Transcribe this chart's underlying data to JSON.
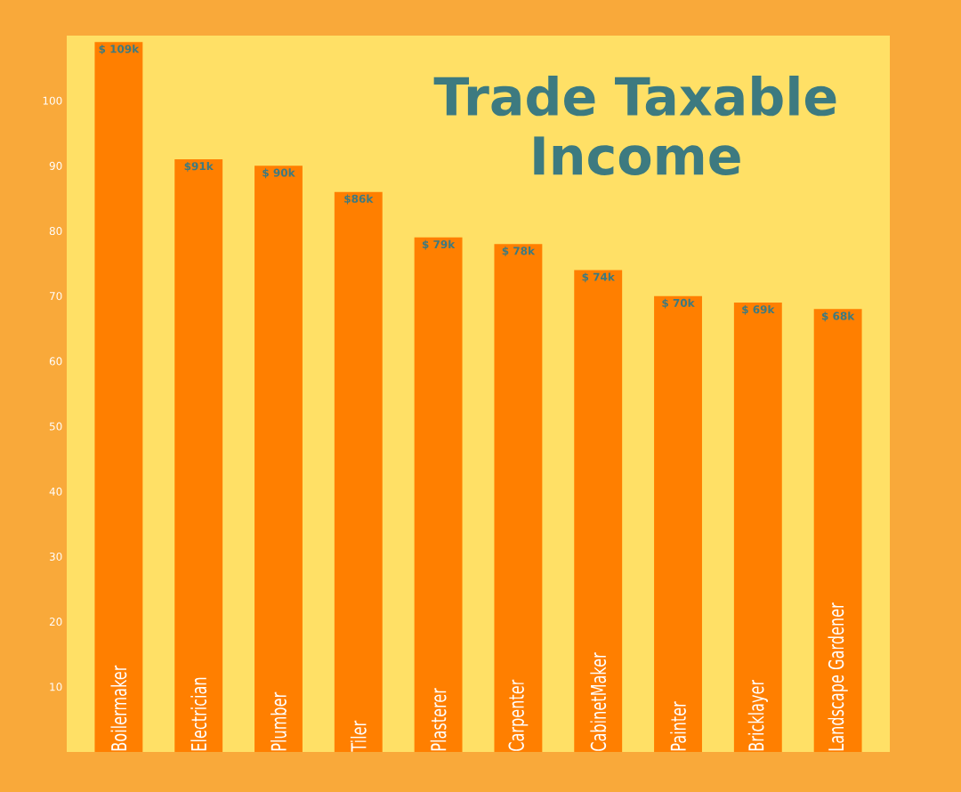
{
  "chart_data": {
    "type": "bar",
    "title": "Trade Taxable Income",
    "categories": [
      "Boilermaker",
      "Electrician",
      "Plumber",
      "Tiler",
      "Plasterer",
      "Carpenter",
      "CabinetMaker",
      "Painter",
      "Bricklayer",
      "Landscape Gardener"
    ],
    "values": [
      109,
      91,
      90,
      86,
      79,
      78,
      74,
      70,
      69,
      68
    ],
    "value_labels": [
      "$ 109k",
      "$91k",
      "$ 90k",
      "$86k",
      "$ 79k",
      "$ 78k",
      "$ 74k",
      "$ 70k",
      "$ 69k",
      "$ 68k"
    ],
    "color": "#ff7f00",
    "ylim": [
      0,
      110
    ],
    "yticks": [
      10,
      20,
      30,
      40,
      50,
      60,
      70,
      80,
      90,
      100
    ]
  }
}
